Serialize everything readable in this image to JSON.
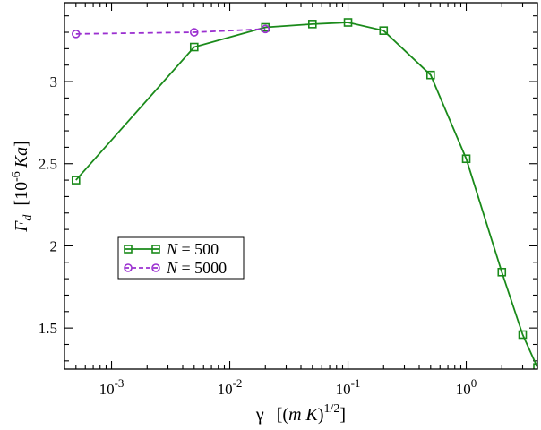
{
  "chart_data": {
    "type": "line",
    "title": "",
    "xscale": "log",
    "xlim": [
      0.0004,
      4.0
    ],
    "ylim": [
      1.25,
      3.48
    ],
    "grid": false,
    "legend": "center-left",
    "xlabel": {
      "symbol": "γ",
      "open": "[(",
      "m": "m",
      "k": "K",
      "close": ")",
      "power": "1/2",
      "end": "]"
    },
    "ylabel": {
      "symbol": "F",
      "sub": "d",
      "open": "[10",
      "power": "-6",
      "unit": "Ka",
      "end": "]"
    },
    "x_ticks": [
      {
        "value": 0.001,
        "base": "10",
        "exp": "-3"
      },
      {
        "value": 0.01,
        "base": "10",
        "exp": "-2"
      },
      {
        "value": 0.1,
        "base": "10",
        "exp": "-1"
      },
      {
        "value": 1.0,
        "base": "10",
        "exp": "0"
      }
    ],
    "y_ticks": [
      {
        "value": 1.5,
        "label": "1.5"
      },
      {
        "value": 2.0,
        "label": "2"
      },
      {
        "value": 2.5,
        "label": "2.5"
      },
      {
        "value": 3.0,
        "label": "3"
      }
    ],
    "series": [
      {
        "name": "N = 500",
        "name_var": "N",
        "name_rest": " = 500",
        "color": "#1a8a1a",
        "marker": "square",
        "dash": "solid",
        "x": [
          0.0005,
          0.005,
          0.02,
          0.05,
          0.1,
          0.2,
          0.5,
          1.0,
          2.0,
          3.0,
          4.0
        ],
        "y": [
          2.4,
          3.21,
          3.33,
          3.35,
          3.36,
          3.31,
          3.04,
          2.53,
          1.84,
          1.46,
          1.26
        ]
      },
      {
        "name": "N = 5000",
        "name_var": "N",
        "name_rest": " = 5000",
        "color": "#9b30d0",
        "marker": "circle",
        "dash": "dashed",
        "x": [
          0.0005,
          0.005,
          0.02
        ],
        "y": [
          3.29,
          3.3,
          3.32
        ]
      }
    ]
  }
}
